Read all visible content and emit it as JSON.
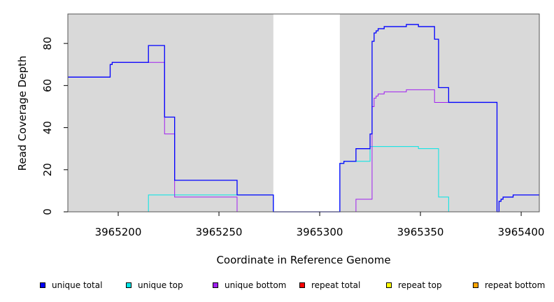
{
  "chart_data": {
    "type": "line",
    "title": "",
    "xlabel": "Coordinate in Reference Genome",
    "ylabel": "Read Coverage Depth",
    "xlim": [
      3965175,
      3965409
    ],
    "ylim": [
      0,
      94
    ],
    "x_ticks": [
      3965200,
      3965250,
      3965300,
      3965350,
      3965400
    ],
    "y_ticks": [
      0,
      20,
      40,
      60,
      80
    ],
    "shaded_regions": [
      {
        "x": [
          3965175,
          3965277
        ]
      },
      {
        "x": [
          3965310,
          3965409
        ]
      }
    ],
    "legend_placement": "bottom",
    "series": [
      {
        "name": "unique total",
        "color": "#0000ff",
        "step": true,
        "points": [
          [
            3965175,
            64
          ],
          [
            3965196,
            64
          ],
          [
            3965196,
            70
          ],
          [
            3965197,
            70
          ],
          [
            3965197,
            71
          ],
          [
            3965215,
            71
          ],
          [
            3965215,
            79
          ],
          [
            3965223,
            79
          ],
          [
            3965223,
            45
          ],
          [
            3965228,
            45
          ],
          [
            3965228,
            15
          ],
          [
            3965259,
            15
          ],
          [
            3965259,
            8
          ],
          [
            3965277,
            8
          ],
          [
            3965277,
            0
          ],
          [
            3965310,
            0
          ],
          [
            3965310,
            23
          ],
          [
            3965312,
            23
          ],
          [
            3965312,
            24
          ],
          [
            3965318,
            24
          ],
          [
            3965318,
            30
          ],
          [
            3965325,
            30
          ],
          [
            3965325,
            37
          ],
          [
            3965326,
            37
          ],
          [
            3965326,
            81
          ],
          [
            3965327,
            81
          ],
          [
            3965327,
            85
          ],
          [
            3965328,
            85
          ],
          [
            3965328,
            86
          ],
          [
            3965329,
            86
          ],
          [
            3965329,
            87
          ],
          [
            3965332,
            87
          ],
          [
            3965332,
            88
          ],
          [
            3965343,
            88
          ],
          [
            3965343,
            89
          ],
          [
            3965349,
            89
          ],
          [
            3965349,
            88
          ],
          [
            3965357,
            88
          ],
          [
            3965357,
            82
          ],
          [
            3965359,
            82
          ],
          [
            3965359,
            59
          ],
          [
            3965364,
            59
          ],
          [
            3965364,
            52
          ],
          [
            3965388,
            52
          ],
          [
            3965388,
            0
          ],
          [
            3965389,
            0
          ],
          [
            3965389,
            5
          ],
          [
            3965390,
            5
          ],
          [
            3965390,
            6
          ],
          [
            3965391,
            6
          ],
          [
            3965391,
            7
          ],
          [
            3965396,
            7
          ],
          [
            3965396,
            8
          ],
          [
            3965409,
            8
          ]
        ]
      },
      {
        "name": "unique top",
        "color": "#00e5e5",
        "step": true,
        "points": [
          [
            3965175,
            0
          ],
          [
            3965215,
            0
          ],
          [
            3965215,
            8
          ],
          [
            3965277,
            8
          ],
          [
            3965277,
            0
          ],
          [
            3965310,
            0
          ],
          [
            3965310,
            23
          ],
          [
            3965312,
            23
          ],
          [
            3965312,
            24
          ],
          [
            3965325,
            24
          ],
          [
            3965325,
            31
          ],
          [
            3965349,
            31
          ],
          [
            3965349,
            30
          ],
          [
            3965359,
            30
          ],
          [
            3965359,
            7
          ],
          [
            3965364,
            7
          ],
          [
            3965364,
            0
          ],
          [
            3965409,
            0
          ]
        ]
      },
      {
        "name": "unique bottom",
        "color": "#a020f0",
        "step": true,
        "points": [
          [
            3965175,
            64
          ],
          [
            3965196,
            64
          ],
          [
            3965196,
            70
          ],
          [
            3965197,
            70
          ],
          [
            3965197,
            71
          ],
          [
            3965223,
            71
          ],
          [
            3965223,
            37
          ],
          [
            3965228,
            37
          ],
          [
            3965228,
            7
          ],
          [
            3965259,
            7
          ],
          [
            3965259,
            0
          ],
          [
            3965318,
            0
          ],
          [
            3965318,
            6
          ],
          [
            3965326,
            6
          ],
          [
            3965326,
            50
          ],
          [
            3965327,
            50
          ],
          [
            3965327,
            54
          ],
          [
            3965328,
            54
          ],
          [
            3965328,
            55
          ],
          [
            3965329,
            55
          ],
          [
            3965329,
            56
          ],
          [
            3965332,
            56
          ],
          [
            3965332,
            57
          ],
          [
            3965343,
            57
          ],
          [
            3965343,
            58
          ],
          [
            3965357,
            58
          ],
          [
            3965357,
            52
          ],
          [
            3965388,
            52
          ],
          [
            3965388,
            0
          ],
          [
            3965409,
            0
          ]
        ]
      },
      {
        "name": "repeat total",
        "color": "#ff0000",
        "step": true,
        "points": [
          [
            3965175,
            0
          ],
          [
            3965409,
            0
          ]
        ]
      },
      {
        "name": "repeat top",
        "color": "#ffff00",
        "step": true,
        "points": [
          [
            3965175,
            0
          ],
          [
            3965409,
            0
          ]
        ]
      },
      {
        "name": "repeat bottom",
        "color": "#ffa500",
        "step": true,
        "points": [
          [
            3965175,
            0
          ],
          [
            3965409,
            0
          ]
        ]
      }
    ]
  }
}
